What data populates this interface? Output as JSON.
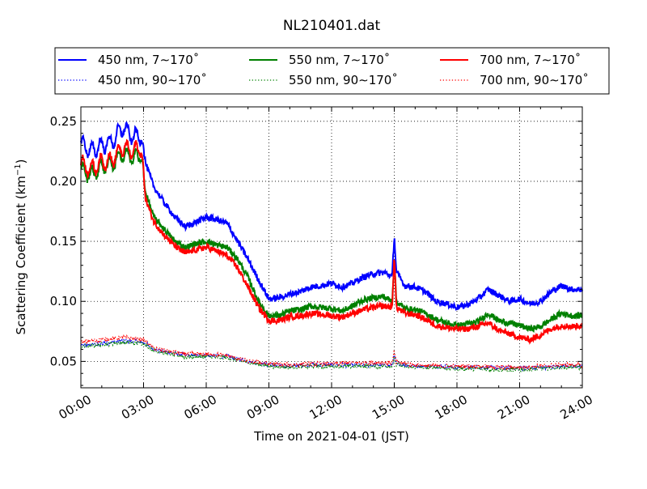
{
  "chart_data": {
    "type": "line",
    "title": "NL210401.dat",
    "xlabel": "Time on 2021-04-01 (JST)",
    "ylabel": "Scattering Coefficient (km",
    "ylabel_superscript": "−1",
    "ylabel_suffix": ")",
    "xlim": [
      0,
      24
    ],
    "ylim": [
      0.028,
      0.262
    ],
    "grid": true,
    "grid_style": "dotted",
    "legend_position": "top",
    "x_ticks": [
      0,
      3,
      6,
      9,
      12,
      15,
      18,
      21,
      24
    ],
    "x_tick_labels": [
      "00:00",
      "03:00",
      "06:00",
      "09:00",
      "12:00",
      "15:00",
      "18:00",
      "21:00",
      "24:00"
    ],
    "y_ticks": [
      0.05,
      0.1,
      0.15,
      0.2,
      0.25
    ],
    "y_tick_labels": [
      "0.05",
      "0.10",
      "0.15",
      "0.20",
      "0.25"
    ],
    "colors": {
      "blue": "#0000ff",
      "green": "#008000",
      "red": "#ff0000"
    },
    "series": [
      {
        "name": "450 nm, 7∼170˚",
        "color": "#0000ff",
        "style": "solid",
        "x": [
          0,
          0.5,
          1.0,
          1.5,
          2.0,
          2.5,
          2.9,
          3.1,
          3.5,
          4.0,
          4.5,
          5.0,
          5.5,
          6.0,
          6.5,
          7.0,
          7.5,
          8.0,
          8.5,
          9.0,
          9.5,
          10.0,
          10.5,
          11.0,
          11.5,
          12.0,
          12.5,
          13.0,
          13.5,
          14.0,
          14.5,
          14.9,
          15.0,
          15.1,
          15.5,
          16.0,
          16.5,
          17.0,
          17.5,
          18.0,
          18.5,
          19.0,
          19.5,
          20.0,
          20.5,
          21.0,
          21.5,
          22.0,
          22.5,
          23.0,
          23.5,
          24.0
        ],
        "y": [
          0.232,
          0.225,
          0.23,
          0.233,
          0.245,
          0.237,
          0.238,
          0.215,
          0.195,
          0.182,
          0.17,
          0.162,
          0.166,
          0.17,
          0.168,
          0.165,
          0.15,
          0.135,
          0.118,
          0.102,
          0.103,
          0.106,
          0.108,
          0.112,
          0.113,
          0.115,
          0.112,
          0.115,
          0.12,
          0.123,
          0.124,
          0.121,
          0.155,
          0.125,
          0.113,
          0.112,
          0.108,
          0.1,
          0.098,
          0.095,
          0.097,
          0.102,
          0.11,
          0.105,
          0.1,
          0.102,
          0.098,
          0.1,
          0.108,
          0.113,
          0.11,
          0.11
        ]
      },
      {
        "name": "550 nm, 7∼170˚",
        "color": "#008000",
        "style": "solid",
        "x": [
          0,
          0.5,
          1.0,
          1.5,
          2.0,
          2.5,
          2.9,
          3.1,
          3.5,
          4.0,
          4.5,
          5.0,
          5.5,
          6.0,
          6.5,
          7.0,
          7.5,
          8.0,
          8.5,
          9.0,
          9.5,
          10.0,
          10.5,
          11.0,
          11.5,
          12.0,
          12.5,
          13.0,
          13.5,
          14.0,
          14.5,
          14.9,
          15.0,
          15.1,
          15.5,
          16.0,
          16.5,
          17.0,
          17.5,
          18.0,
          18.5,
          19.0,
          19.5,
          20.0,
          20.5,
          21.0,
          21.5,
          22.0,
          22.5,
          23.0,
          23.5,
          24.0
        ],
        "y": [
          0.21,
          0.205,
          0.212,
          0.215,
          0.222,
          0.22,
          0.222,
          0.19,
          0.17,
          0.16,
          0.15,
          0.145,
          0.148,
          0.15,
          0.147,
          0.145,
          0.135,
          0.12,
          0.1,
          0.088,
          0.088,
          0.092,
          0.093,
          0.096,
          0.095,
          0.094,
          0.092,
          0.096,
          0.101,
          0.103,
          0.104,
          0.1,
          0.135,
          0.1,
          0.094,
          0.093,
          0.09,
          0.085,
          0.082,
          0.08,
          0.081,
          0.083,
          0.09,
          0.084,
          0.082,
          0.08,
          0.077,
          0.079,
          0.085,
          0.09,
          0.088,
          0.088
        ]
      },
      {
        "name": "700 nm, 7∼170˚",
        "color": "#ff0000",
        "style": "solid",
        "x": [
          0,
          0.5,
          1.0,
          1.5,
          2.0,
          2.5,
          2.9,
          3.1,
          3.5,
          4.0,
          4.5,
          5.0,
          5.5,
          6.0,
          6.5,
          7.0,
          7.5,
          8.0,
          8.5,
          9.0,
          9.5,
          10.0,
          10.5,
          11.0,
          11.5,
          12.0,
          12.5,
          13.0,
          13.5,
          14.0,
          14.5,
          14.9,
          15.0,
          15.1,
          15.5,
          16.0,
          16.5,
          17.0,
          17.5,
          18.0,
          18.5,
          19.0,
          19.5,
          20.0,
          20.5,
          21.0,
          21.5,
          22.0,
          22.5,
          23.0,
          23.5,
          24.0
        ],
        "y": [
          0.215,
          0.21,
          0.216,
          0.218,
          0.228,
          0.225,
          0.228,
          0.185,
          0.166,
          0.155,
          0.146,
          0.14,
          0.143,
          0.145,
          0.142,
          0.138,
          0.128,
          0.112,
          0.095,
          0.084,
          0.084,
          0.087,
          0.088,
          0.09,
          0.089,
          0.088,
          0.087,
          0.09,
          0.093,
          0.095,
          0.096,
          0.095,
          0.14,
          0.095,
          0.09,
          0.089,
          0.085,
          0.08,
          0.078,
          0.077,
          0.077,
          0.079,
          0.082,
          0.076,
          0.073,
          0.07,
          0.068,
          0.072,
          0.077,
          0.08,
          0.079,
          0.08
        ]
      },
      {
        "name": "450 nm, 90∼170˚",
        "color": "#0000ff",
        "style": "dotted",
        "x": [
          0,
          1.0,
          2.0,
          3.0,
          3.5,
          4.0,
          5.0,
          6.0,
          7.0,
          8.0,
          9.0,
          10.0,
          11.0,
          12.0,
          13.0,
          14.0,
          14.9,
          15.0,
          15.1,
          16.0,
          17.0,
          18.0,
          19.0,
          20.0,
          21.0,
          22.0,
          23.0,
          24.0
        ],
        "y": [
          0.063,
          0.065,
          0.067,
          0.066,
          0.06,
          0.058,
          0.055,
          0.055,
          0.054,
          0.05,
          0.047,
          0.046,
          0.047,
          0.047,
          0.047,
          0.047,
          0.047,
          0.055,
          0.048,
          0.046,
          0.046,
          0.045,
          0.045,
          0.045,
          0.044,
          0.045,
          0.046,
          0.046
        ]
      },
      {
        "name": "550 nm, 90∼170˚",
        "color": "#008000",
        "style": "dotted",
        "x": [
          0,
          1.0,
          2.0,
          3.0,
          3.5,
          4.0,
          5.0,
          6.0,
          7.0,
          8.0,
          9.0,
          10.0,
          11.0,
          12.0,
          13.0,
          14.0,
          14.9,
          15.0,
          15.1,
          16.0,
          17.0,
          18.0,
          19.0,
          20.0,
          21.0,
          22.0,
          23.0,
          24.0
        ],
        "y": [
          0.062,
          0.064,
          0.066,
          0.065,
          0.059,
          0.057,
          0.054,
          0.054,
          0.053,
          0.049,
          0.046,
          0.045,
          0.046,
          0.046,
          0.046,
          0.046,
          0.046,
          0.053,
          0.047,
          0.045,
          0.045,
          0.044,
          0.044,
          0.043,
          0.043,
          0.044,
          0.045,
          0.045
        ]
      },
      {
        "name": "700 nm, 90∼170˚",
        "color": "#ff0000",
        "style": "dotted",
        "x": [
          0,
          1.0,
          2.0,
          3.0,
          3.5,
          4.0,
          5.0,
          6.0,
          7.0,
          8.0,
          9.0,
          10.0,
          11.0,
          12.0,
          13.0,
          14.0,
          14.9,
          15.0,
          15.1,
          16.0,
          17.0,
          18.0,
          19.0,
          20.0,
          21.0,
          22.0,
          23.0,
          24.0
        ],
        "y": [
          0.066,
          0.068,
          0.07,
          0.068,
          0.061,
          0.059,
          0.056,
          0.056,
          0.055,
          0.05,
          0.048,
          0.047,
          0.048,
          0.048,
          0.049,
          0.049,
          0.049,
          0.058,
          0.049,
          0.047,
          0.046,
          0.046,
          0.046,
          0.045,
          0.045,
          0.046,
          0.047,
          0.047
        ]
      }
    ]
  }
}
